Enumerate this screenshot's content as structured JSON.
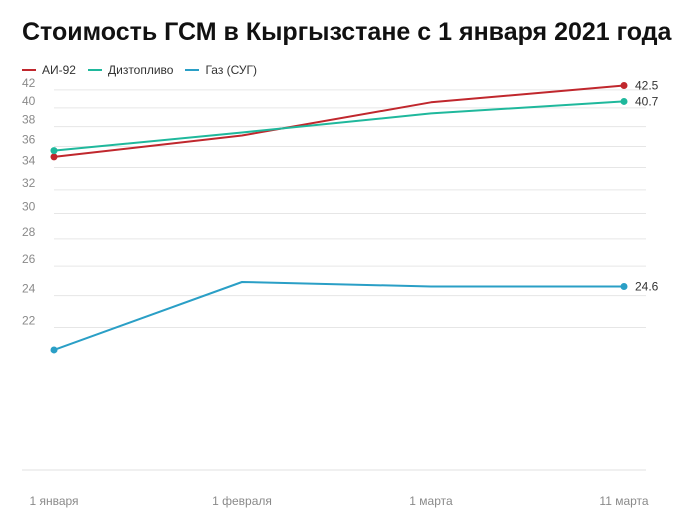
{
  "chart_data": {
    "type": "line",
    "title": "Стоимость ГСМ в Кыргызстане с 1 января 2021 года",
    "categories": [
      "1 января",
      "1 февраля",
      "1 марта",
      "11 марта"
    ],
    "y_ticks": [
      "22",
      "24",
      "26",
      "28",
      "30",
      "32",
      "34",
      "36",
      "38",
      "40",
      "42"
    ],
    "grid": true,
    "legend_position": "top-left",
    "series": [
      {
        "name": "АИ-92",
        "color": "#c0272d",
        "values": [
          35.0,
          37.1,
          40.6,
          42.5
        ],
        "end_label": "42.5"
      },
      {
        "name": "Дизтопливо",
        "color": "#1fb89c",
        "values": [
          35.6,
          37.4,
          39.4,
          40.7
        ],
        "end_label": "40.7"
      },
      {
        "name": "Газ (СУГ)",
        "color": "#2a9fc6",
        "values": [
          20.7,
          24.9,
          24.6,
          24.6
        ],
        "end_label": "24.6"
      }
    ]
  }
}
